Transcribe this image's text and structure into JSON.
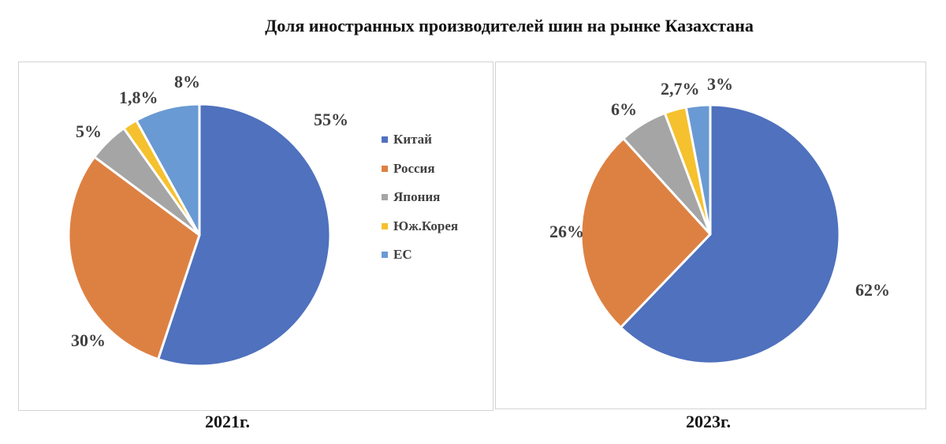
{
  "title": "Доля иностранных производителей шин на рынке Казахстана",
  "legend": [
    "Китай",
    "Россия",
    "Япония",
    "Юж.Корея",
    "ЕС"
  ],
  "colors": {
    "Китай": "#4f71be",
    "Россия": "#dd8143",
    "Япония": "#a5a5a5",
    "Юж.Корея": "#f5c12e",
    "ЕС": "#6a9ad3"
  },
  "chart_data": [
    {
      "type": "pie",
      "caption": "2021г.",
      "categories": [
        "Китай",
        "Россия",
        "Япония",
        "Юж.Корея",
        "ЕС"
      ],
      "values": [
        55,
        30,
        5,
        1.8,
        8
      ],
      "labels": [
        "55%",
        "30%",
        "5%",
        "1,8%",
        "8%"
      ],
      "legend_position": "right"
    },
    {
      "type": "pie",
      "caption": "2023г.",
      "categories": [
        "Китай",
        "Россия",
        "Япония",
        "Юж.Корея",
        "ЕС"
      ],
      "values": [
        62,
        26,
        6,
        2.7,
        3
      ],
      "labels": [
        "62%",
        "26%",
        "6%",
        "2,7%",
        "3%"
      ]
    }
  ]
}
